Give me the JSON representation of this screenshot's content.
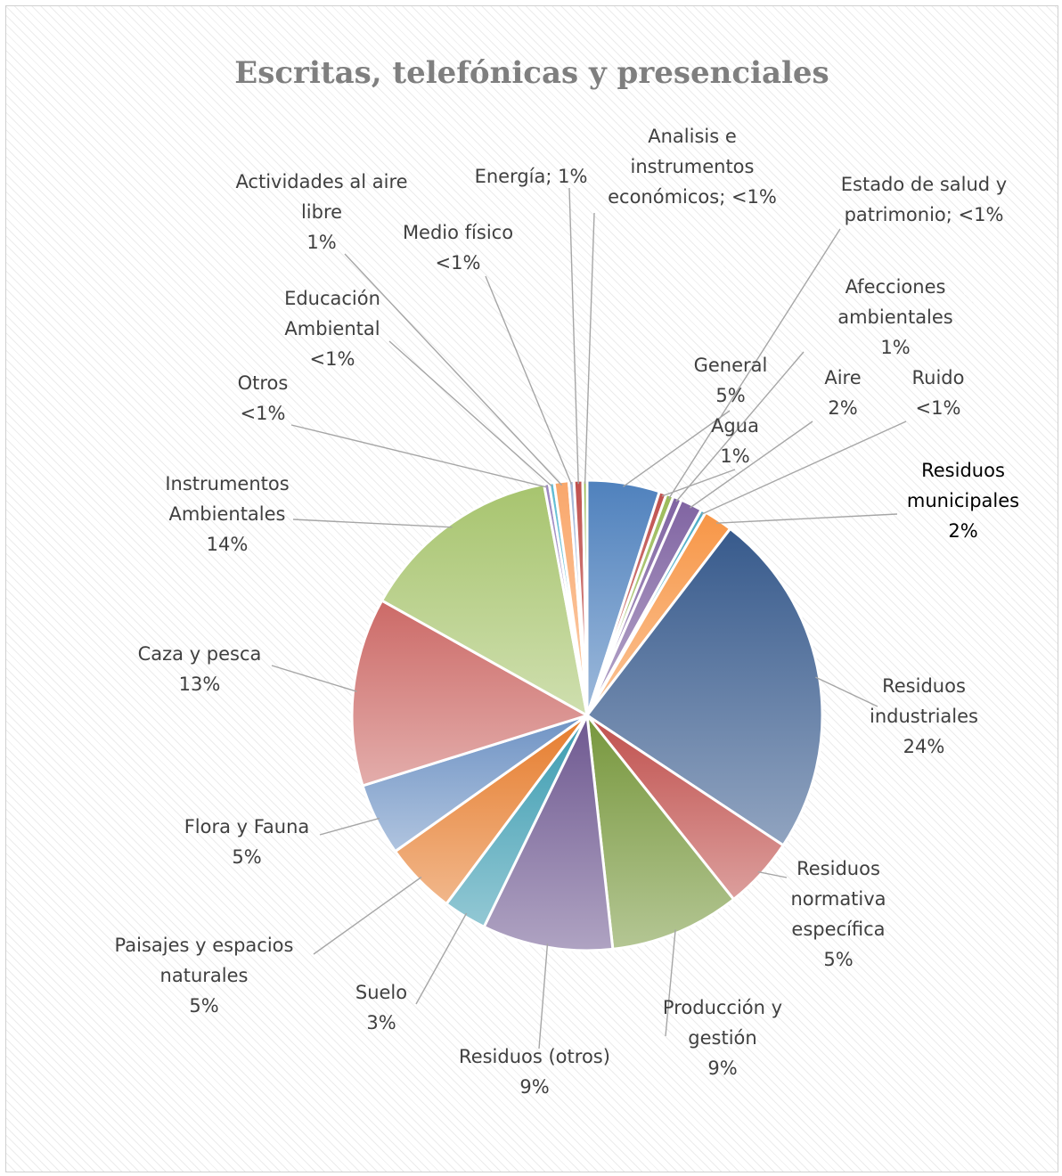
{
  "chart_data": {
    "type": "pie",
    "title": "Escritas, telefónicas y presenciales",
    "slices": [
      {
        "name": "General",
        "value": 5,
        "label_lines": [
          "General",
          "5%"
        ],
        "color": "#4f81bd"
      },
      {
        "name": "Agua",
        "value": 0.5,
        "label_lines": [
          "Agua",
          "1%"
        ],
        "color": "#c0504d"
      },
      {
        "name": "Estado de salud y patrimonio",
        "value": 0.5,
        "label_lines": [
          "Estado de salud y",
          "patrimonio; <1%"
        ],
        "color": "#9bbb59"
      },
      {
        "name": "Afecciones ambientales",
        "value": 0.6,
        "label_lines": [
          "Afecciones",
          "ambientales",
          "1%"
        ],
        "color": "#7f63a2"
      },
      {
        "name": "Aire",
        "value": 1.5,
        "label_lines": [
          "Aire",
          "2%"
        ],
        "color": "#8064a2"
      },
      {
        "name": "Ruido",
        "value": 0.35,
        "label_lines": [
          "Ruido",
          "<1%"
        ],
        "color": "#4bacc6"
      },
      {
        "name": "Residuos municipales",
        "value": 2,
        "label_lines": [
          "Residuos",
          "municipales",
          "2%"
        ],
        "color": "#f79646"
      },
      {
        "name": "Residuos industriales",
        "value": 24,
        "label_lines": [
          "Residuos",
          "industriales",
          "24%"
        ],
        "color": "#375a8c"
      },
      {
        "name": "Residuos normativa específica",
        "value": 5,
        "label_lines": [
          "Residuos",
          "normativa",
          "específica",
          "5%"
        ],
        "color": "#c0504d"
      },
      {
        "name": "Producción y gestión",
        "value": 9,
        "label_lines": [
          "Producción y",
          "gestión",
          "9%"
        ],
        "color": "#77973c"
      },
      {
        "name": "Residuos (otros)",
        "value": 9,
        "label_lines": [
          "Residuos (otros)",
          "9%"
        ],
        "color": "#6e5890"
      },
      {
        "name": "Suelo",
        "value": 3,
        "label_lines": [
          "Suelo",
          "3%"
        ],
        "color": "#3a9bb0"
      },
      {
        "name": "Paisajes y espacios naturales",
        "value": 5,
        "label_lines": [
          "Paisajes y espacios",
          "naturales",
          "5%"
        ],
        "color": "#e67c2c"
      },
      {
        "name": "Flora y Fauna",
        "value": 5,
        "label_lines": [
          "Flora y Fauna",
          "5%"
        ],
        "color": "#6f93c4"
      },
      {
        "name": "Caza y pesca",
        "value": 13,
        "label_lines": [
          "Caza y pesca",
          "13%"
        ],
        "color": "#cc6a67"
      },
      {
        "name": "Instrumentos Ambientales",
        "value": 14,
        "label_lines": [
          "Instrumentos",
          "Ambientales",
          "14%"
        ],
        "color": "#a7c46e"
      },
      {
        "name": "Otros",
        "value": 0.35,
        "label_lines": [
          "Otros",
          "<1%"
        ],
        "color": "#9b86c0"
      },
      {
        "name": "Educación Ambiental",
        "value": 0.35,
        "label_lines": [
          "Educación",
          "Ambiental",
          "<1%"
        ],
        "color": "#5fbcd3"
      },
      {
        "name": "Actividades al aire libre",
        "value": 1,
        "label_lines": [
          "Actividades al aire",
          "libre",
          "1%"
        ],
        "color": "#f9a76b"
      },
      {
        "name": "Medio físico",
        "value": 0.35,
        "label_lines": [
          "Medio físico",
          "<1%"
        ],
        "color": "#a3b8d8"
      },
      {
        "name": "Energía",
        "value": 0.6,
        "label_lines": [
          "Energía; 1%"
        ],
        "color": "#c0504d"
      },
      {
        "name": "Analisis e instrumentos económicos",
        "value": 0.3,
        "label_lines": [
          "Analisis e",
          "instrumentos",
          "económicos; <1%"
        ],
        "color": "#9bbb59"
      }
    ]
  }
}
